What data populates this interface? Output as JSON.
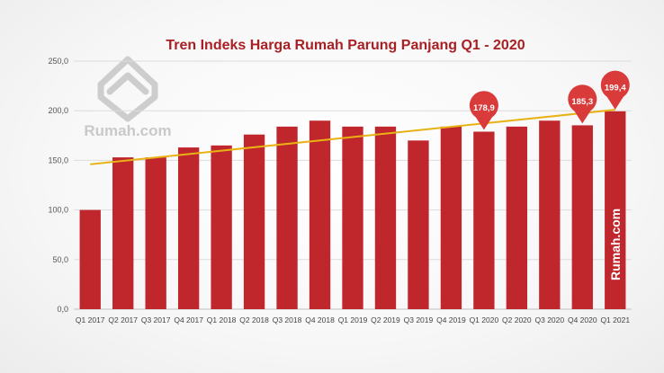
{
  "chart_data": {
    "type": "bar",
    "title": "Tren Indeks Harga Rumah Parung Panjang Q1 - 2020",
    "categories": [
      "Q1 2017",
      "Q2 2017",
      "Q3 2017",
      "Q4 2017",
      "Q1 2018",
      "Q2 2018",
      "Q3 2018",
      "Q4 2018",
      "Q1 2019",
      "Q2 2019",
      "Q3 2019",
      "Q4 2019",
      "Q1 2020",
      "Q2 2020",
      "Q3 2020",
      "Q4 2020",
      "Q1 2021"
    ],
    "values": [
      100,
      153,
      153,
      163,
      165,
      176,
      184,
      190,
      184,
      184,
      170,
      184,
      178.9,
      184,
      190,
      185.3,
      199.4
    ],
    "yticks": [
      "0,0",
      "50,0",
      "100,0",
      "150,0",
      "200,0",
      "250,0"
    ],
    "ylim": [
      0,
      250
    ],
    "trendline": {
      "start": 146,
      "end": 201,
      "color": "#e8b214"
    },
    "callouts": [
      {
        "index": 12,
        "label": "178,9"
      },
      {
        "index": 15,
        "label": "185,3"
      },
      {
        "index": 16,
        "label": "199,4"
      }
    ],
    "bar_color": "#c0272d",
    "callout_color": "#d93a3a",
    "xlabel": "",
    "ylabel": "",
    "grid": true
  },
  "watermark": {
    "logo_text": "Rumah.com",
    "vertical_text": "Rumah.com",
    "logo_icon": "rumah-house-logo-icon"
  }
}
